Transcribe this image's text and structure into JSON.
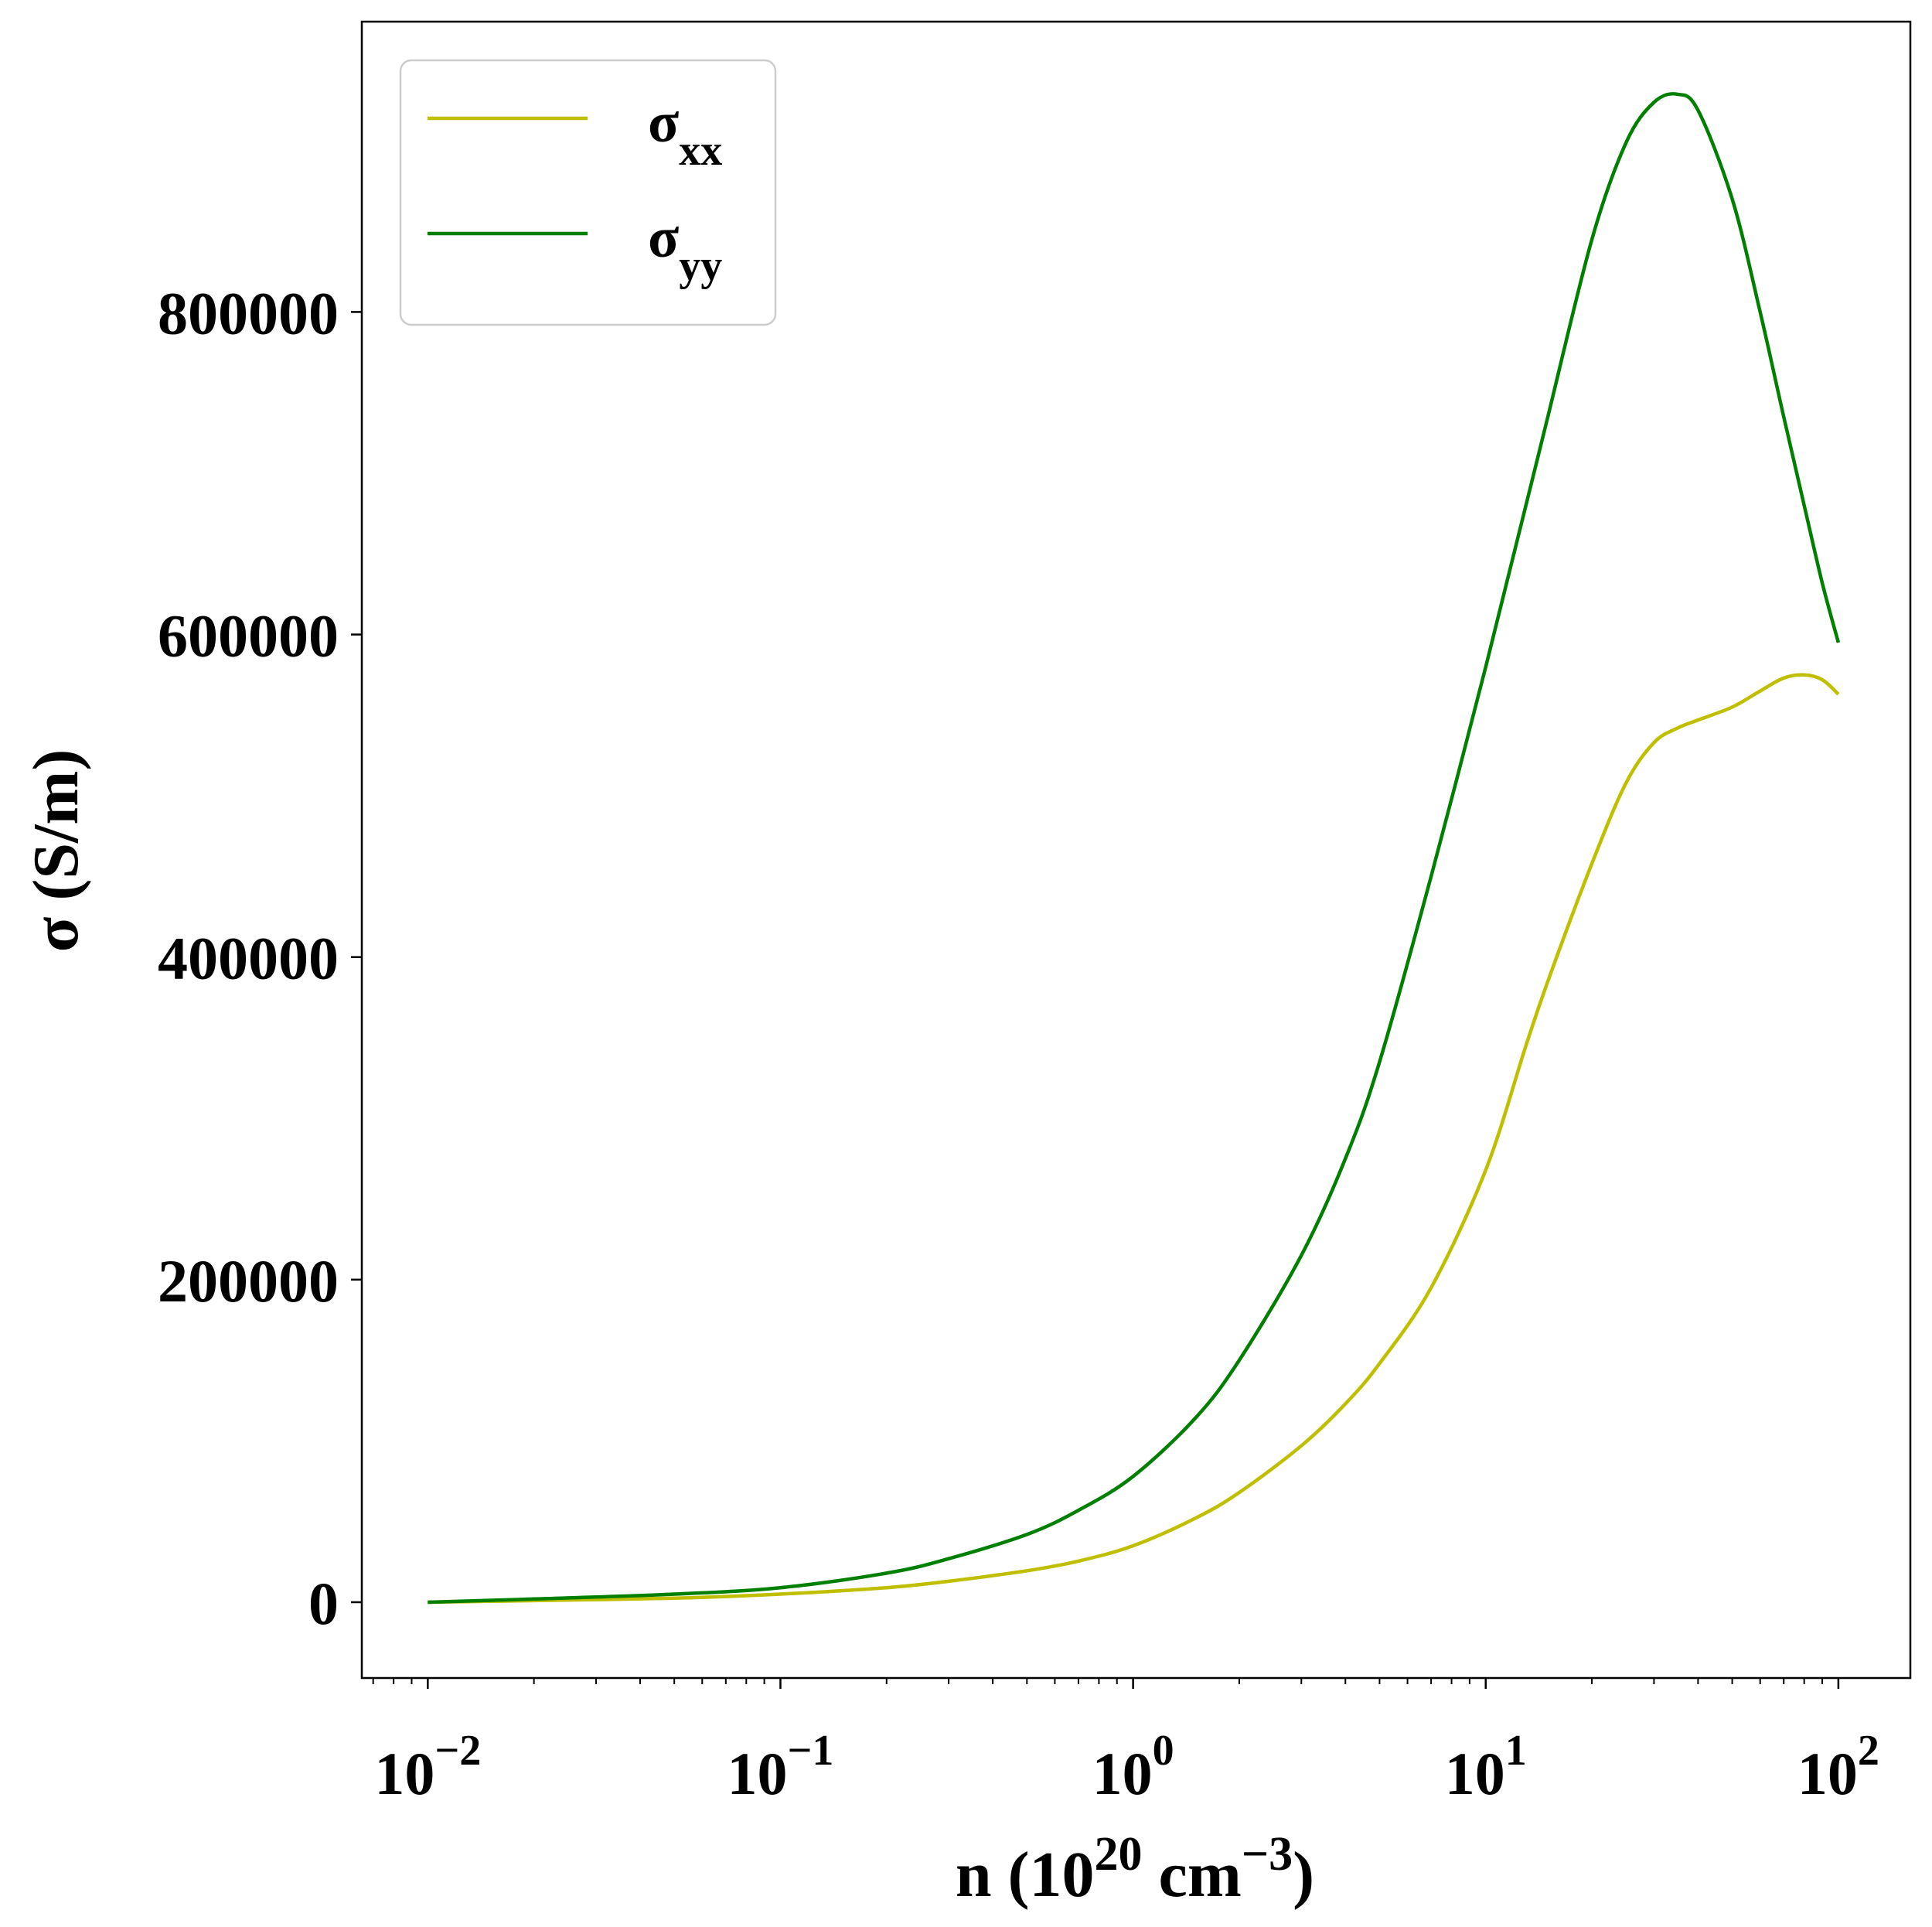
{
  "chart_data": {
    "type": "line",
    "xscale": "log",
    "xlabel": {
      "base": "n (10",
      "exp1": "20",
      "mid": " cm",
      "exp2": "−3",
      "end": ")"
    },
    "ylabel": "σ (S/m)",
    "xlim": [
      0.0065,
      160
    ],
    "ylim": [
      -47000,
      980000
    ],
    "grid": false,
    "legend_position": "upper-left",
    "x_ticks": [
      {
        "value": 0.01,
        "base": "10",
        "exp": "−2"
      },
      {
        "value": 0.1,
        "base": "10",
        "exp": "−1"
      },
      {
        "value": 1,
        "base": "10",
        "exp": "0"
      },
      {
        "value": 10,
        "base": "10",
        "exp": "1"
      },
      {
        "value": 100,
        "base": "10",
        "exp": "2"
      }
    ],
    "y_ticks": [
      {
        "value": 0,
        "label": "0"
      },
      {
        "value": 200000,
        "label": "200000"
      },
      {
        "value": 400000,
        "label": "400000"
      },
      {
        "value": 600000,
        "label": "600000"
      },
      {
        "value": 800000,
        "label": "800000"
      }
    ],
    "series": [
      {
        "name": {
          "base": "σ",
          "sub": "xx"
        },
        "color": "#bfbf00",
        "x": [
          0.01,
          0.02,
          0.05,
          0.1,
          0.2,
          0.3,
          0.5,
          0.7,
          1,
          1.5,
          2,
          3,
          4,
          5,
          7,
          10,
          13,
          15,
          20,
          25,
          30,
          35,
          40,
          50,
          60,
          70,
          80,
          90,
          100
        ],
        "y": [
          0,
          1000,
          2500,
          5000,
          9000,
          13000,
          19500,
          25500,
          35000,
          52000,
          68000,
          97000,
          123000,
          148000,
          195000,
          268000,
          345000,
          385000,
          458000,
          508000,
          533000,
          542000,
          547000,
          555000,
          565000,
          573000,
          575000,
          572000,
          563000
        ]
      },
      {
        "name": {
          "base": "σ",
          "sub": "yy"
        },
        "color": "#007f00",
        "x": [
          0.01,
          0.02,
          0.05,
          0.1,
          0.2,
          0.3,
          0.5,
          0.7,
          1,
          1.5,
          2,
          3,
          4,
          5,
          7,
          10,
          13,
          15,
          20,
          25,
          30,
          35,
          40,
          50,
          60,
          70,
          80,
          90,
          100
        ],
        "y": [
          0,
          2000,
          5000,
          9000,
          18000,
          27000,
          42000,
          57000,
          78000,
          114000,
          150000,
          215000,
          275000,
          335000,
          450000,
          580000,
          680000,
          735000,
          845000,
          905000,
          930000,
          935000,
          925000,
          870000,
          800000,
          735000,
          680000,
          632000,
          595000
        ]
      }
    ]
  }
}
